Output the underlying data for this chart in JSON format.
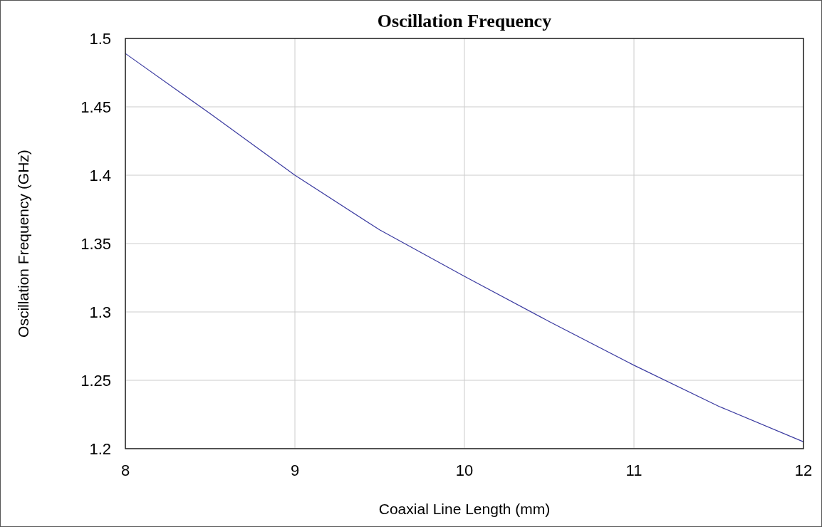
{
  "chart_data": {
    "type": "line",
    "title": "Oscillation Frequency",
    "xlabel": "Coaxial Line Length (mm)",
    "ylabel": "Oscillation Frequency (GHz)",
    "x": [
      8,
      8.5,
      9,
      9.5,
      10,
      10.5,
      11,
      11.5,
      12
    ],
    "series": [
      {
        "color": "#3a3aa0",
        "values": [
          1.489,
          1.445,
          1.4,
          1.36,
          1.326,
          1.293,
          1.261,
          1.231,
          1.205
        ]
      }
    ],
    "xlim": [
      8,
      12
    ],
    "xticks": [
      8,
      9,
      10,
      11,
      12
    ],
    "ylim": [
      1.2,
      1.5
    ],
    "yticks": [
      1.2,
      1.25,
      1.3,
      1.35,
      1.4,
      1.45,
      1.5
    ],
    "grid": true
  }
}
